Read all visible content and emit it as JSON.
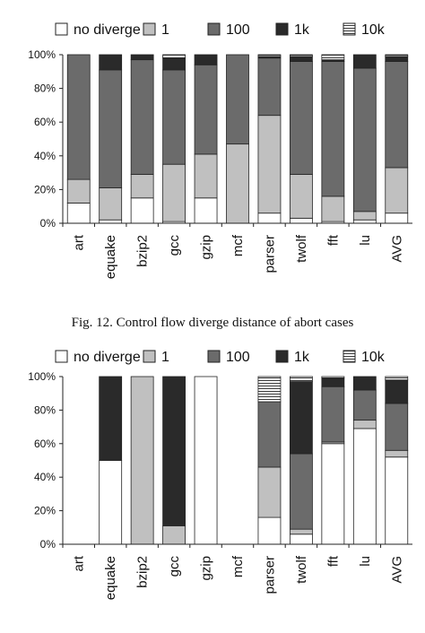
{
  "figure_caption": "Fig. 12.   Control flow diverge distance of abort cases",
  "legend": [
    "no diverge",
    "1",
    "100",
    "1k",
    "10k"
  ],
  "colors": {
    "no diverge": "#ffffff",
    "1": "#c0c0c0",
    "100": "#6b6b6b",
    "1k": "#2a2a2a",
    "10k": "#ffffff"
  },
  "chart_data": [
    {
      "type": "bar",
      "stacked": true,
      "title": "",
      "xlabel": "",
      "ylabel": "",
      "ylim": [
        0,
        100
      ],
      "yticks": [
        "0%",
        "20%",
        "40%",
        "60%",
        "80%",
        "100%"
      ],
      "legend_position": "top",
      "grid": false,
      "categories": [
        "art",
        "equake",
        "bzip2",
        "gcc",
        "gzip",
        "mcf",
        "parser",
        "twolf",
        "fft",
        "lu",
        "AVG"
      ],
      "series": [
        {
          "name": "no diverge",
          "values": [
            12,
            2,
            15,
            1,
            15,
            0,
            6,
            3,
            1,
            2,
            6
          ]
        },
        {
          "name": "1",
          "values": [
            14,
            19,
            14,
            34,
            26,
            47,
            58,
            26,
            15,
            5,
            27
          ]
        },
        {
          "name": "100",
          "values": [
            74,
            70,
            68,
            56,
            53,
            53,
            34,
            67,
            80,
            85,
            63
          ]
        },
        {
          "name": "1k",
          "values": [
            0,
            9,
            3,
            7,
            6,
            0,
            1,
            3,
            1,
            8,
            3
          ]
        },
        {
          "name": "10k",
          "values": [
            0,
            0,
            0,
            2,
            0,
            0,
            1,
            1,
            3,
            0,
            1
          ]
        }
      ]
    },
    {
      "type": "bar",
      "stacked": true,
      "title": "",
      "xlabel": "",
      "ylabel": "",
      "ylim": [
        0,
        100
      ],
      "yticks": [
        "0%",
        "20%",
        "40%",
        "60%",
        "80%",
        "100%"
      ],
      "legend_position": "top",
      "grid": false,
      "categories": [
        "art",
        "equake",
        "bzip2",
        "gcc",
        "gzip",
        "mcf",
        "parser",
        "twolf",
        "fft",
        "lu",
        "AVG"
      ],
      "series": [
        {
          "name": "no diverge",
          "values": [
            0,
            50,
            0,
            0,
            100,
            0,
            16,
            6,
            60,
            69,
            52
          ]
        },
        {
          "name": "1",
          "values": [
            0,
            0,
            100,
            11,
            0,
            0,
            30,
            3,
            1,
            5,
            4
          ]
        },
        {
          "name": "100",
          "values": [
            0,
            0,
            0,
            0,
            0,
            0,
            39,
            45,
            33,
            18,
            28
          ]
        },
        {
          "name": "1k",
          "values": [
            0,
            50,
            0,
            89,
            0,
            0,
            0,
            43,
            5,
            8,
            14
          ]
        },
        {
          "name": "10k",
          "values": [
            0,
            0,
            0,
            0,
            0,
            0,
            15,
            3,
            1,
            0,
            2
          ]
        }
      ]
    }
  ]
}
